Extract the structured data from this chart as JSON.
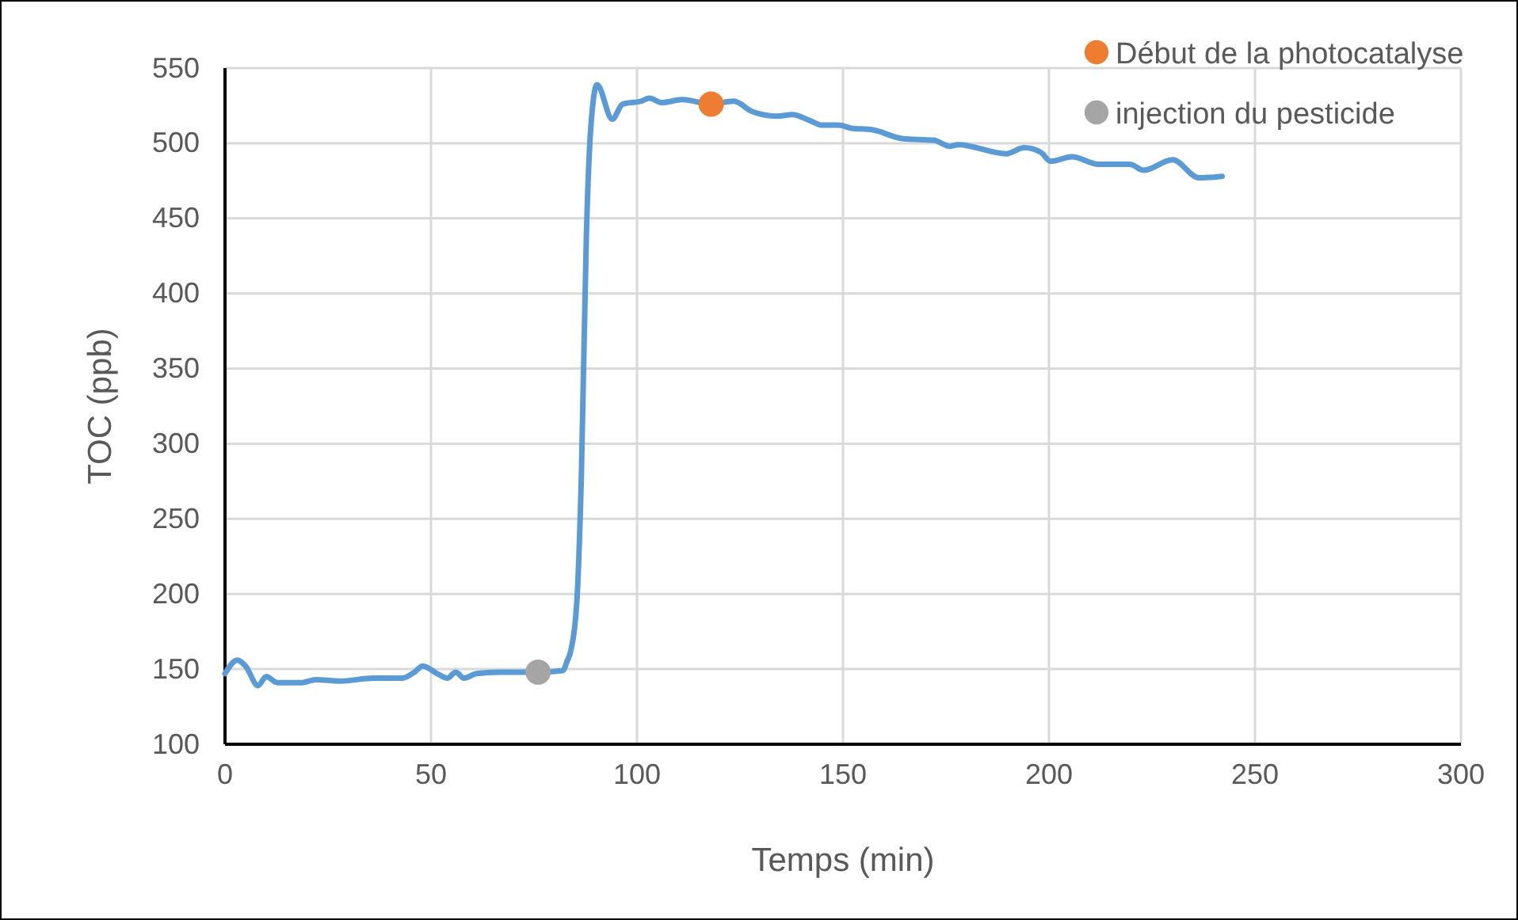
{
  "chart_data": {
    "type": "line",
    "xlabel": "Temps (min)",
    "ylabel": "TOC (ppb)",
    "xlim": [
      0,
      300
    ],
    "xticks": [
      0,
      50,
      100,
      150,
      200,
      250,
      300
    ],
    "ylim": [
      100,
      550
    ],
    "yticks": [
      100,
      150,
      200,
      250,
      300,
      350,
      400,
      450,
      500,
      550
    ],
    "grid": true,
    "legend": "top right",
    "line_style": "solid",
    "series": [
      {
        "color": "#5b9bd5",
        "marker": "none",
        "x": [
          0,
          3,
          5,
          8,
          10,
          12.7,
          18.5,
          22,
          28,
          36,
          43,
          46,
          48,
          51.5,
          54,
          56,
          58,
          61,
          66.5,
          76,
          82,
          83,
          84,
          85.4,
          86.5,
          87.7,
          88.8,
          90.3,
          94,
          96.5,
          101,
          103,
          106,
          111,
          118,
          123.5,
          128,
          134,
          137.7,
          142,
          145,
          149,
          152,
          157,
          164.6,
          172,
          176,
          178,
          189.6,
          194,
          198,
          200.4,
          205.6,
          212,
          219.6,
          223,
          230,
          236.4,
          242
        ],
        "values": [
          147,
          156,
          152,
          139,
          145,
          141,
          141,
          143,
          142,
          144,
          144,
          148,
          152,
          147,
          144,
          148,
          144,
          147,
          148,
          148,
          149,
          155,
          163,
          195,
          279,
          437,
          511,
          539,
          516,
          526,
          528,
          530,
          527,
          529,
          526,
          528,
          521,
          518,
          519,
          515,
          512,
          512,
          510,
          509,
          503,
          502,
          498,
          499,
          493,
          497,
          494,
          488,
          491,
          486,
          486,
          482,
          489,
          477,
          478
        ]
      },
      {
        "type": "scatter",
        "name": "Début de la photocatalyse",
        "color": "#ed7d31",
        "marker": "circle",
        "x": [
          118
        ],
        "values": [
          526
        ]
      },
      {
        "type": "scatter",
        "name": "injection du pesticide",
        "color": "#a5a5a5",
        "marker": "circle",
        "x": [
          76
        ],
        "values": [
          148
        ]
      }
    ]
  }
}
